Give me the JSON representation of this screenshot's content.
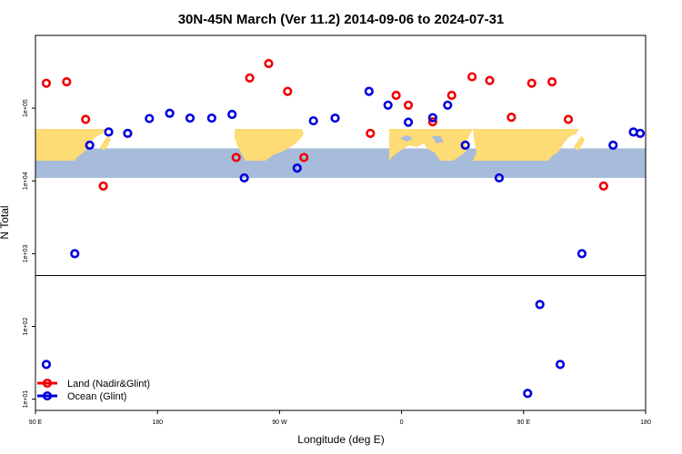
{
  "chart_data": {
    "type": "scatter",
    "title": "30N-45N March (Ver 11.2)   2014-09-06 to 2024-07-31",
    "xlabel": "Longitude (deg E)",
    "ylabel": "N Total",
    "x_ticks": [
      {
        "value": 90,
        "label": "90 E"
      },
      {
        "value": 180,
        "label": "180"
      },
      {
        "value": 270,
        "label": "90 W"
      },
      {
        "value": 360,
        "label": "0"
      },
      {
        "value": 450,
        "label": "90 E"
      },
      {
        "value": 540,
        "label": "180"
      }
    ],
    "xlim": [
      90,
      540
    ],
    "y_scale": "log",
    "ylim": [
      7,
      1000000
    ],
    "y_ticks": [
      {
        "value": 10,
        "label": "1e+01"
      },
      {
        "value": 100,
        "label": "1e+02"
      },
      {
        "value": 1000,
        "label": "1e+03"
      },
      {
        "value": 10000,
        "label": "1e+04"
      },
      {
        "value": 100000,
        "label": "1e+05"
      }
    ],
    "panel_break_value": 500,
    "map_band": {
      "lat_range": "30N-45N",
      "y_range": [
        11000,
        28000
      ]
    },
    "series": [
      {
        "name": "Land (Nadir&Glint)",
        "color": "#ee0000",
        "x": [
          98,
          113,
          127,
          140,
          238,
          248,
          262,
          276,
          288,
          337,
          356,
          365,
          383,
          397,
          412,
          425,
          441,
          456,
          471,
          483,
          509
        ],
        "y": [
          220000,
          230000,
          70000,
          8500,
          21000,
          260000,
          410000,
          170000,
          21000,
          45000,
          150000,
          110000,
          65000,
          150000,
          270000,
          240000,
          75000,
          220000,
          230000,
          70000,
          8500
        ]
      },
      {
        "name": "Ocean (Glint)",
        "color": "#0000dd",
        "x": [
          98,
          119,
          130,
          144,
          158,
          174,
          189,
          204,
          220,
          235,
          244,
          283,
          295,
          311,
          336,
          350,
          365,
          383,
          394,
          407,
          432,
          453,
          462,
          477,
          493,
          516,
          531,
          536
        ],
        "y": [
          30,
          1000,
          31000,
          47000,
          45000,
          72000,
          85000,
          73000,
          73000,
          82000,
          11000,
          15000,
          67000,
          73000,
          170000,
          110000,
          64000,
          74000,
          110000,
          31000,
          11000,
          12,
          200,
          30,
          1000,
          31000,
          47000,
          45000
        ]
      }
    ],
    "legend": {
      "position": "bottom-left",
      "entries": [
        "Land (Nadir&Glint)",
        "Ocean (Glint)"
      ]
    }
  }
}
